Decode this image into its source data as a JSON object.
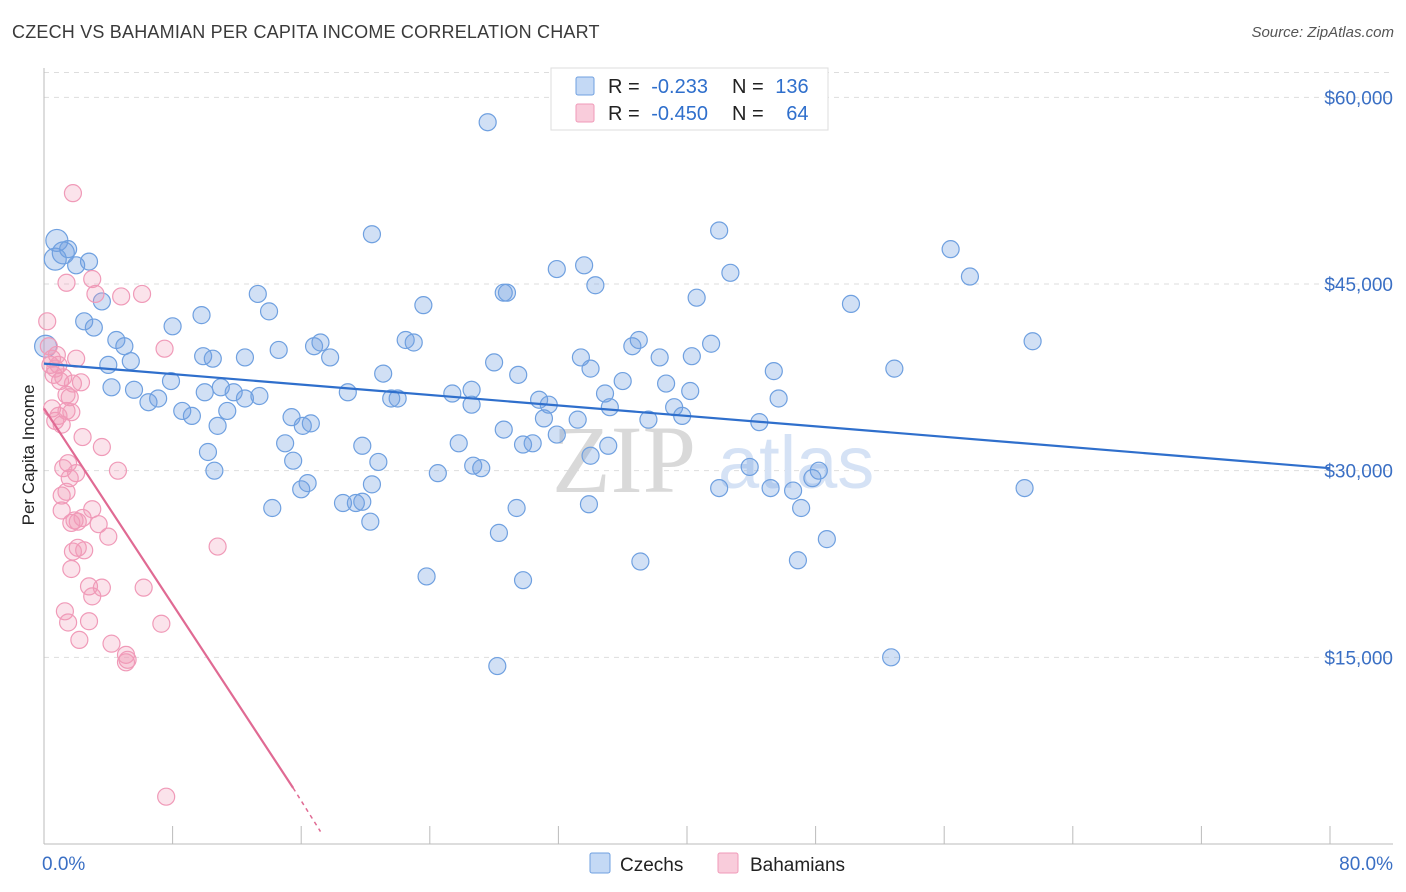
{
  "title": "CZECH VS BAHAMIAN PER CAPITA INCOME CORRELATION CHART",
  "source": "Source: ZipAtlas.com",
  "watermark": {
    "zip": "ZIP",
    "atlas": "atlas"
  },
  "colors": {
    "czech": "#6fa0e0",
    "czech_line": "#2f6fcc",
    "bahamian": "#f09ab8",
    "bahamian_line": "#e06a93",
    "tick": "#3a6fc4",
    "grid": "#dddddd"
  },
  "legend": {
    "rows": [
      {
        "r_label": "R =",
        "r_value": "-0.233",
        "n_label": "N =",
        "n_value": "136"
      },
      {
        "r_label": "R =",
        "r_value": "-0.450",
        "n_label": "N =",
        "n_value": "64"
      }
    ]
  },
  "bottom_legend": {
    "czech": "Czechs",
    "bahamian": "Bahamians"
  },
  "chart_data": {
    "type": "scatter",
    "title": "CZECH VS BAHAMIAN PER CAPITA INCOME CORRELATION CHART",
    "xlabel": "",
    "ylabel": "Per Capita Income",
    "xlim": [
      0,
      80
    ],
    "ylim": [
      0,
      63000
    ],
    "x_tick_labels": [
      "0.0%",
      "80.0%"
    ],
    "y_ticks": [
      15000,
      30000,
      45000,
      60000
    ],
    "y_tick_labels": [
      "$15,000",
      "$30,000",
      "$45,000",
      "$60,000"
    ],
    "series": [
      {
        "name": "Czechs",
        "r": -0.233,
        "n": 136,
        "trend": {
          "x": [
            0,
            80
          ],
          "y": [
            38600,
            30200
          ]
        },
        "points": [
          [
            0.1,
            40000
          ],
          [
            0.8,
            48500
          ],
          [
            1.2,
            47500
          ],
          [
            1.5,
            47800
          ],
          [
            2.0,
            46500
          ],
          [
            2.8,
            46800
          ],
          [
            0.7,
            47000
          ],
          [
            2.5,
            42000
          ],
          [
            3.1,
            41500
          ],
          [
            3.6,
            43600
          ],
          [
            4.5,
            40500
          ],
          [
            5.0,
            40000
          ],
          [
            5.4,
            38800
          ],
          [
            4.0,
            38500
          ],
          [
            4.2,
            36700
          ],
          [
            5.6,
            36500
          ],
          [
            6.5,
            35500
          ],
          [
            7.1,
            35800
          ],
          [
            8.0,
            41600
          ],
          [
            9.8,
            42500
          ],
          [
            9.9,
            39200
          ],
          [
            10.5,
            39000
          ],
          [
            12.5,
            39100
          ],
          [
            14.6,
            39700
          ],
          [
            7.9,
            37200
          ],
          [
            10.0,
            36300
          ],
          [
            11.0,
            36700
          ],
          [
            11.8,
            36300
          ],
          [
            12.5,
            35800
          ],
          [
            13.4,
            36000
          ],
          [
            8.6,
            34800
          ],
          [
            9.2,
            34400
          ],
          [
            10.8,
            33600
          ],
          [
            11.4,
            34800
          ],
          [
            13.3,
            44200
          ],
          [
            14.0,
            42800
          ],
          [
            16.8,
            40000
          ],
          [
            17.2,
            40300
          ],
          [
            17.8,
            39100
          ],
          [
            18.9,
            36300
          ],
          [
            20.4,
            49000
          ],
          [
            21.1,
            37800
          ],
          [
            22.0,
            35800
          ],
          [
            21.6,
            35800
          ],
          [
            22.5,
            40500
          ],
          [
            23.0,
            40300
          ],
          [
            23.6,
            43300
          ],
          [
            15.4,
            34300
          ],
          [
            16.1,
            33600
          ],
          [
            16.6,
            33800
          ],
          [
            15.0,
            32200
          ],
          [
            19.8,
            32000
          ],
          [
            20.8,
            30700
          ],
          [
            10.2,
            31500
          ],
          [
            10.6,
            30000
          ],
          [
            15.5,
            30800
          ],
          [
            16.0,
            28500
          ],
          [
            16.4,
            29000
          ],
          [
            18.6,
            27400
          ],
          [
            19.4,
            27400
          ],
          [
            19.8,
            27500
          ],
          [
            20.3,
            25900
          ],
          [
            14.2,
            27000
          ],
          [
            20.4,
            28900
          ],
          [
            24.5,
            29800
          ],
          [
            23.8,
            21500
          ],
          [
            25.4,
            36200
          ],
          [
            26.6,
            36500
          ],
          [
            26.6,
            35300
          ],
          [
            25.8,
            32200
          ],
          [
            26.7,
            30400
          ],
          [
            27.2,
            30200
          ],
          [
            28.0,
            38700
          ],
          [
            28.6,
            33300
          ],
          [
            28.6,
            44300
          ],
          [
            28.8,
            44300
          ],
          [
            28.3,
            25000
          ],
          [
            29.5,
            37700
          ],
          [
            30.8,
            35700
          ],
          [
            31.1,
            34200
          ],
          [
            31.4,
            35300
          ],
          [
            31.9,
            32900
          ],
          [
            29.4,
            27000
          ],
          [
            29.8,
            32100
          ],
          [
            30.4,
            32200
          ],
          [
            29.8,
            21200
          ],
          [
            27.6,
            58000
          ],
          [
            31.9,
            46200
          ],
          [
            33.6,
            46500
          ],
          [
            34.3,
            44900
          ],
          [
            33.4,
            39100
          ],
          [
            34.0,
            38200
          ],
          [
            33.2,
            34100
          ],
          [
            34.0,
            31200
          ],
          [
            33.9,
            27300
          ],
          [
            35.2,
            35100
          ],
          [
            36.0,
            37200
          ],
          [
            35.1,
            32000
          ],
          [
            34.9,
            36200
          ],
          [
            37.0,
            40500
          ],
          [
            37.6,
            34100
          ],
          [
            37.1,
            22700
          ],
          [
            38.3,
            39100
          ],
          [
            39.2,
            35100
          ],
          [
            40.6,
            43900
          ],
          [
            42.0,
            49300
          ],
          [
            42.7,
            45900
          ],
          [
            44.5,
            33900
          ],
          [
            45.4,
            38000
          ],
          [
            45.7,
            35800
          ],
          [
            43.9,
            30300
          ],
          [
            45.2,
            28600
          ],
          [
            42.0,
            28600
          ],
          [
            46.6,
            28400
          ],
          [
            47.1,
            27000
          ],
          [
            46.9,
            22800
          ],
          [
            48.7,
            24500
          ],
          [
            48.2,
            30000
          ],
          [
            47.8,
            29400
          ],
          [
            50.2,
            43400
          ],
          [
            52.9,
            38200
          ],
          [
            56.4,
            47800
          ],
          [
            57.6,
            45600
          ],
          [
            61.5,
            40400
          ],
          [
            61.0,
            28600
          ],
          [
            52.7,
            15000
          ],
          [
            28.2,
            14300
          ],
          [
            36.6,
            40000
          ],
          [
            40.3,
            39200
          ],
          [
            41.5,
            40200
          ],
          [
            38.7,
            37000
          ],
          [
            40.2,
            36400
          ],
          [
            39.7,
            34400
          ]
        ]
      },
      {
        "name": "Bahamians",
        "r": -0.45,
        "n": 64,
        "trend": {
          "x": [
            0,
            15.5
          ],
          "y": [
            35000,
            4500
          ],
          "dashed_to": {
            "x": 17.2,
            "y": 1000
          }
        },
        "points": [
          [
            0.2,
            42000
          ],
          [
            0.3,
            40000
          ],
          [
            0.4,
            38500
          ],
          [
            0.5,
            39000
          ],
          [
            0.6,
            37700
          ],
          [
            0.7,
            38200
          ],
          [
            0.8,
            39300
          ],
          [
            0.9,
            38500
          ],
          [
            1.0,
            37200
          ],
          [
            1.2,
            37500
          ],
          [
            1.4,
            36100
          ],
          [
            1.6,
            35900
          ],
          [
            1.8,
            37000
          ],
          [
            2.0,
            39000
          ],
          [
            2.3,
            37100
          ],
          [
            0.5,
            35000
          ],
          [
            0.7,
            34000
          ],
          [
            0.9,
            34400
          ],
          [
            1.1,
            33700
          ],
          [
            1.4,
            34800
          ],
          [
            1.7,
            34700
          ],
          [
            2.4,
            32700
          ],
          [
            3.6,
            31900
          ],
          [
            1.2,
            30200
          ],
          [
            1.5,
            30600
          ],
          [
            2.0,
            29800
          ],
          [
            1.1,
            28000
          ],
          [
            1.4,
            28300
          ],
          [
            1.1,
            26800
          ],
          [
            1.7,
            25800
          ],
          [
            1.9,
            26000
          ],
          [
            2.1,
            25900
          ],
          [
            2.4,
            26200
          ],
          [
            3.0,
            26900
          ],
          [
            3.4,
            25700
          ],
          [
            4.0,
            24700
          ],
          [
            4.6,
            30000
          ],
          [
            1.8,
            23500
          ],
          [
            2.1,
            23800
          ],
          [
            2.5,
            23600
          ],
          [
            1.7,
            22100
          ],
          [
            2.8,
            20700
          ],
          [
            3.6,
            20600
          ],
          [
            6.2,
            20600
          ],
          [
            3.0,
            19900
          ],
          [
            1.3,
            18700
          ],
          [
            1.5,
            17800
          ],
          [
            2.8,
            17900
          ],
          [
            7.3,
            17700
          ],
          [
            2.2,
            16400
          ],
          [
            4.2,
            16100
          ],
          [
            5.1,
            15200
          ],
          [
            5.2,
            14800
          ],
          [
            5.1,
            14600
          ],
          [
            3.0,
            45400
          ],
          [
            1.4,
            45100
          ],
          [
            1.8,
            52300
          ],
          [
            6.1,
            44200
          ],
          [
            7.5,
            39800
          ],
          [
            10.8,
            23900
          ],
          [
            4.8,
            44000
          ],
          [
            3.2,
            44200
          ],
          [
            7.6,
            3800
          ],
          [
            1.6,
            29400
          ]
        ]
      }
    ]
  }
}
